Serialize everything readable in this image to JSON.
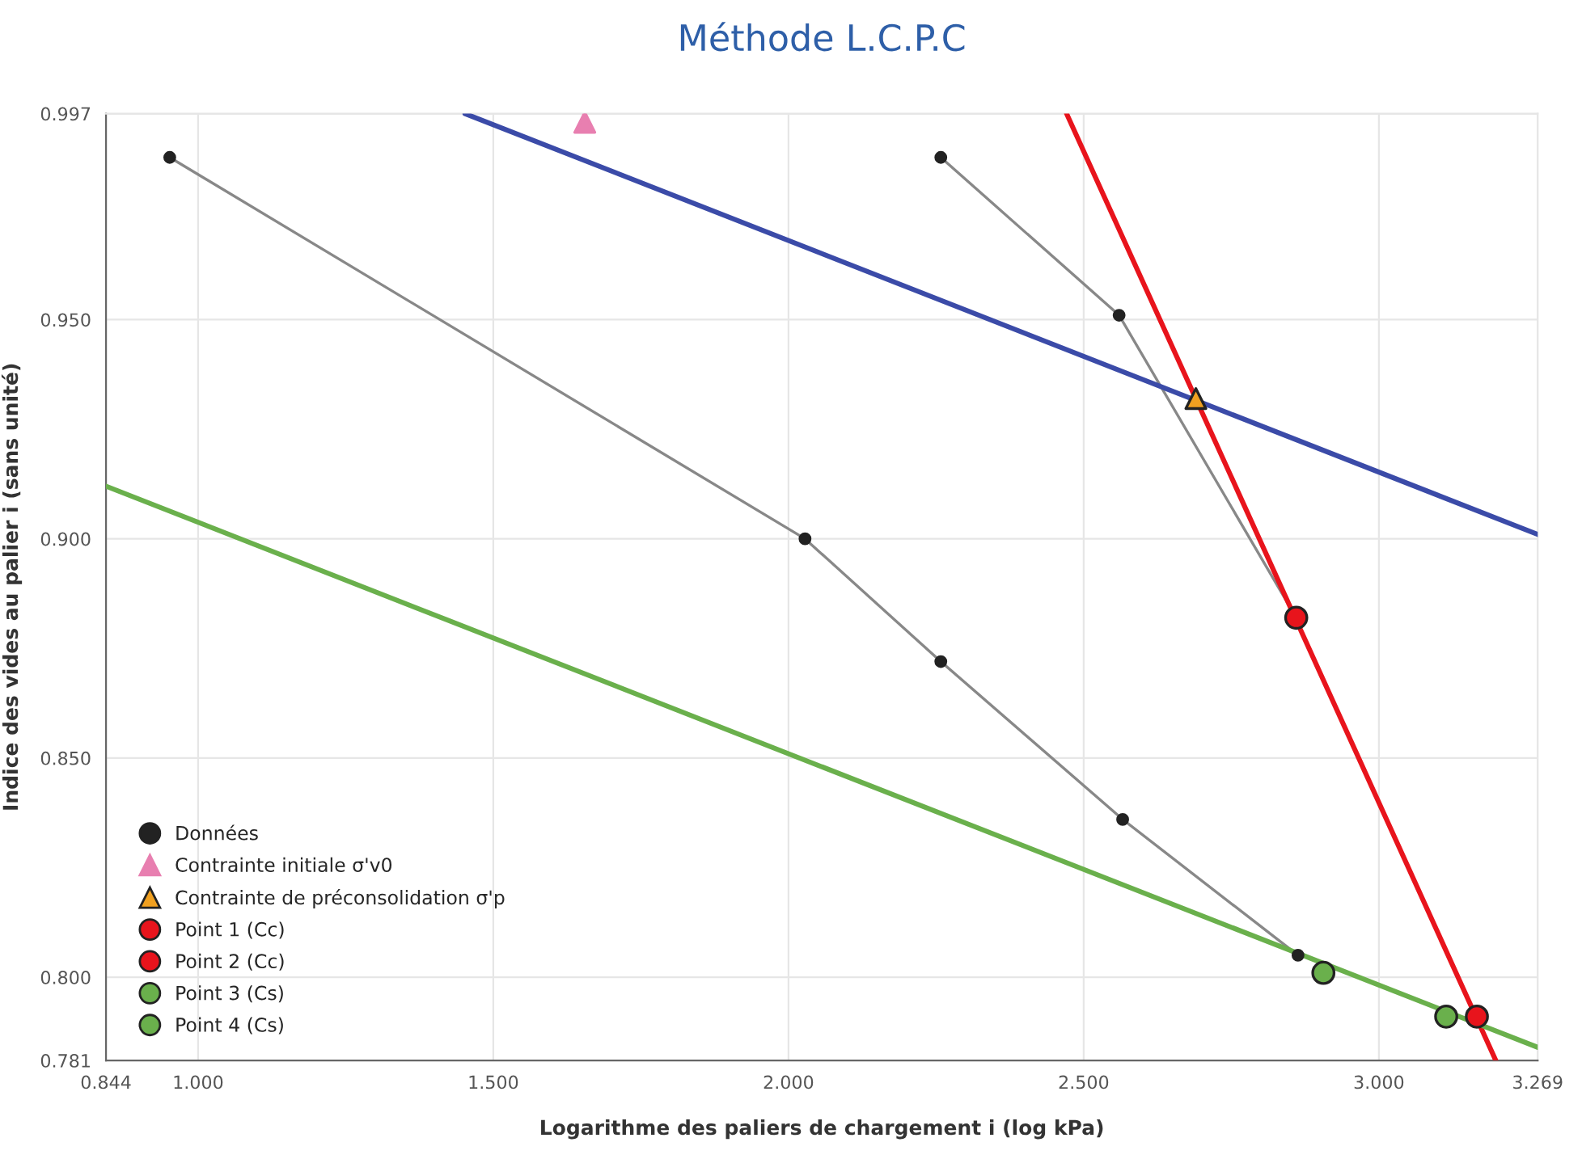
{
  "chart_data": {
    "type": "scatter",
    "title": "Méthode L.C.P.C",
    "xlabel": "Logarithme des paliers de chargement i (log kPa)",
    "ylabel": "Indice des vides au palier i (sans unité)",
    "xlim": [
      0.844,
      3.269
    ],
    "ylim": [
      0.781,
      0.997
    ],
    "xticks": [
      0.844,
      {
        "value": 1.0,
        "label": "1.000"
      },
      {
        "value": 1.5,
        "label": "1.500"
      },
      {
        "value": 2.0,
        "label": "2.000"
      },
      {
        "value": 2.5,
        "label": "2.500"
      },
      {
        "value": 3.0,
        "label": "3.000"
      },
      3.269
    ],
    "yticks": [
      0.781,
      {
        "value": 0.8,
        "label": "0.800"
      },
      {
        "value": 0.85,
        "label": "0.850"
      },
      {
        "value": 0.9,
        "label": "0.900"
      },
      {
        "value": 0.95,
        "label": "0.950"
      },
      0.997
    ],
    "grid": true,
    "legend": "bottom left",
    "series": [
      {
        "type": "line",
        "color": "#3b4ba8",
        "marker": "none",
        "x": [
          1.452,
          3.269
        ],
        "values": [
          0.997,
          0.901
        ]
      },
      {
        "type": "line",
        "color": "#e8141c",
        "marker": "none",
        "x": [
          2.471,
          3.198
        ],
        "values": [
          0.997,
          0.781
        ]
      },
      {
        "type": "line",
        "color": "#6ab04c",
        "marker": "none",
        "x": [
          0.844,
          3.269
        ],
        "values": [
          0.912,
          0.784
        ]
      },
      {
        "type": "line",
        "name": "Données",
        "color": "#222222",
        "marker": "circle",
        "x": [
          0.952,
          2.028,
          2.258,
          2.566,
          2.863
        ],
        "values": [
          0.987,
          0.9,
          0.872,
          0.836,
          0.805
        ]
      },
      {
        "type": "line",
        "color": "#222222",
        "marker": "circle",
        "x": [
          2.258,
          2.56,
          2.86
        ],
        "values": [
          0.987,
          0.951,
          0.882
        ]
      },
      {
        "name": "Contrainte initiale σ'v0",
        "color": "#e87fb0",
        "marker": "triangle",
        "x": [
          1.655
        ],
        "values": [
          0.995
        ]
      },
      {
        "name": "Contrainte de préconsolidation σ'p",
        "color": "#f0a020",
        "marker": "triangle",
        "x": [
          2.69
        ],
        "values": [
          0.932
        ]
      },
      {
        "name": "Point 1 (Cc)",
        "color": "#e8141c",
        "marker": "circle",
        "x": [
          2.86
        ],
        "values": [
          0.882
        ]
      },
      {
        "name": "Point 2 (Cc)",
        "color": "#e8141c",
        "marker": "circle",
        "x": [
          3.166
        ],
        "values": [
          0.791
        ]
      },
      {
        "name": "Point 3 (Cs)",
        "color": "#6ab04c",
        "marker": "circle",
        "x": [
          2.906
        ],
        "values": [
          0.801
        ]
      },
      {
        "name": "Point 4 (Cs)",
        "color": "#6ab04c",
        "marker": "circle",
        "x": [
          3.114
        ],
        "values": [
          0.791
        ]
      }
    ]
  }
}
